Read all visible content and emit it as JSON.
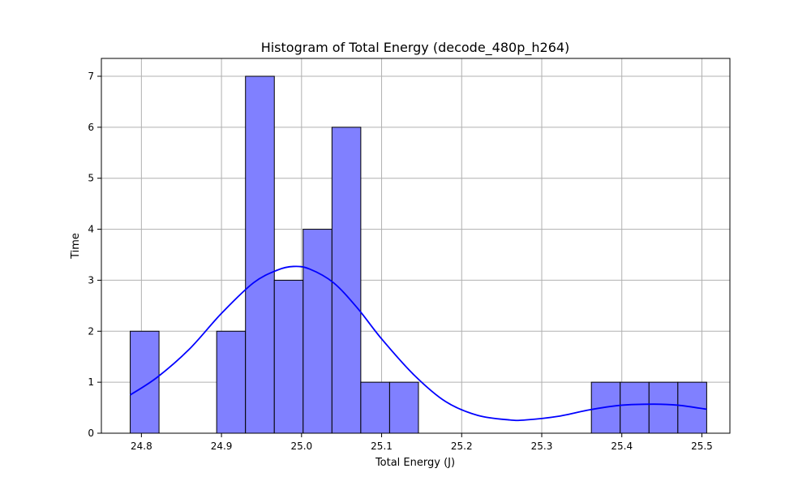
{
  "chart_data": {
    "type": "bar",
    "title": "Histogram of Total Energy (decode_480p_h264)",
    "xlabel": "Total Energy (J)",
    "ylabel": "Time",
    "xlim": [
      24.75,
      25.535
    ],
    "ylim": [
      0,
      7.35
    ],
    "xticks": [
      24.8,
      24.9,
      25.0,
      25.1,
      25.2,
      25.3,
      25.4,
      25.5
    ],
    "xtick_labels": [
      "24.8",
      "24.9",
      "25.0",
      "25.1",
      "25.2",
      "25.3",
      "25.4",
      "25.5"
    ],
    "yticks": [
      0,
      1,
      2,
      3,
      4,
      5,
      6,
      7
    ],
    "ytick_labels": [
      "0",
      "1",
      "2",
      "3",
      "4",
      "5",
      "6",
      "7"
    ],
    "grid": true,
    "bins": [
      {
        "x0": 24.786,
        "x1": 24.822,
        "count": 2
      },
      {
        "x0": 24.822,
        "x1": 24.858,
        "count": 0
      },
      {
        "x0": 24.858,
        "x1": 24.894,
        "count": 0
      },
      {
        "x0": 24.894,
        "x1": 24.93,
        "count": 2
      },
      {
        "x0": 24.93,
        "x1": 24.966,
        "count": 7
      },
      {
        "x0": 24.966,
        "x1": 25.002,
        "count": 3
      },
      {
        "x0": 25.002,
        "x1": 25.038,
        "count": 4
      },
      {
        "x0": 25.038,
        "x1": 25.074,
        "count": 6
      },
      {
        "x0": 25.074,
        "x1": 25.11,
        "count": 1
      },
      {
        "x0": 25.11,
        "x1": 25.146,
        "count": 1
      },
      {
        "x0": 25.146,
        "x1": 25.182,
        "count": 0
      },
      {
        "x0": 25.182,
        "x1": 25.218,
        "count": 0
      },
      {
        "x0": 25.218,
        "x1": 25.254,
        "count": 0
      },
      {
        "x0": 25.254,
        "x1": 25.29,
        "count": 0
      },
      {
        "x0": 25.29,
        "x1": 25.326,
        "count": 0
      },
      {
        "x0": 25.326,
        "x1": 25.362,
        "count": 0
      },
      {
        "x0": 25.362,
        "x1": 25.398,
        "count": 1
      },
      {
        "x0": 25.398,
        "x1": 25.434,
        "count": 1
      },
      {
        "x0": 25.434,
        "x1": 25.47,
        "count": 1
      },
      {
        "x0": 25.47,
        "x1": 25.506,
        "count": 1
      }
    ],
    "kde": {
      "x": [
        24.786,
        24.82,
        24.86,
        24.9,
        24.94,
        24.97,
        24.99,
        25.01,
        25.04,
        25.07,
        25.1,
        25.14,
        25.18,
        25.22,
        25.26,
        25.28,
        25.32,
        25.36,
        25.4,
        25.44,
        25.47,
        25.506
      ],
      "y": [
        0.75,
        1.1,
        1.65,
        2.35,
        2.95,
        3.2,
        3.27,
        3.22,
        2.95,
        2.45,
        1.85,
        1.15,
        0.62,
        0.35,
        0.26,
        0.26,
        0.33,
        0.46,
        0.55,
        0.57,
        0.55,
        0.47
      ]
    },
    "colors": {
      "bar_fill": "#8080ff",
      "bar_edge": "#000000",
      "kde_line": "#0000ff",
      "grid": "#b0b0b0"
    }
  }
}
